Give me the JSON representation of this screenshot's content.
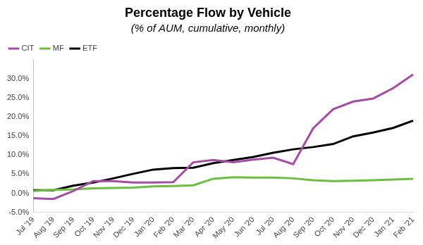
{
  "chart_data": {
    "type": "line",
    "title": "Percentage Flow by Vehicle",
    "subtitle": "(% of AUM, cumulative, monthly)",
    "categories": [
      "Jul '19",
      "Aug '19",
      "Sep '19",
      "Oct '19",
      "Nov '19",
      "Dec '19",
      "Jan '20",
      "Feb '20",
      "Mar '20",
      "Apr '20",
      "May '20",
      "Jun '20",
      "Jul '20",
      "Aug '20",
      "Sep '20",
      "Oct '20",
      "Nov '20",
      "Dec '20",
      "Jan '21",
      "Feb '21"
    ],
    "series": [
      {
        "name": "CIT",
        "color": "#a64ca6",
        "values": [
          -1.3,
          -1.5,
          0.6,
          3.2,
          3.2,
          2.8,
          2.8,
          2.9,
          8.1,
          8.7,
          8.1,
          8.8,
          9.3,
          7.6,
          17.0,
          22.0,
          24.0,
          24.8,
          27.5,
          31.1
        ]
      },
      {
        "name": "MF",
        "color": "#6bbf3f",
        "values": [
          0.6,
          0.9,
          1.0,
          1.3,
          1.4,
          1.5,
          1.8,
          1.9,
          2.1,
          3.8,
          4.2,
          4.1,
          4.1,
          3.9,
          3.4,
          3.2,
          3.3,
          3.4,
          3.6,
          3.8
        ]
      },
      {
        "name": "ETF",
        "color": "#000000",
        "values": [
          0.8,
          0.8,
          2.0,
          2.8,
          3.9,
          5.1,
          6.2,
          6.6,
          6.7,
          7.9,
          8.7,
          9.5,
          10.6,
          11.5,
          12.1,
          12.9,
          14.9,
          15.9,
          17.1,
          19.0
        ]
      }
    ],
    "ylim": [
      -5,
      35
    ],
    "yticks": [
      {
        "value": -5,
        "label": "-5.0%"
      },
      {
        "value": 0,
        "label": "0.0%"
      },
      {
        "value": 5,
        "label": "5.0%"
      },
      {
        "value": 10,
        "label": "10.0%"
      },
      {
        "value": 15,
        "label": "15.0%"
      },
      {
        "value": 20,
        "label": "20.0%"
      },
      {
        "value": 25,
        "label": "25.0%"
      },
      {
        "value": 30,
        "label": "30.0%"
      }
    ],
    "grid": false,
    "legend": "upper left"
  }
}
